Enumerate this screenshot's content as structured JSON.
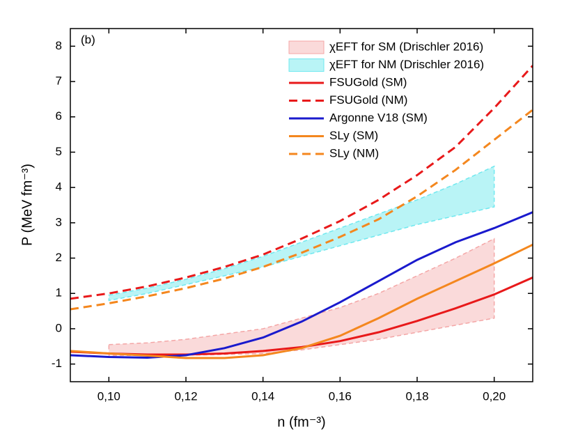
{
  "chart_data": {
    "type": "line",
    "annotation": "(b)",
    "xlabel": "n (fm⁻³)",
    "ylabel": "P (MeV fm⁻³)",
    "xlim": [
      0.09,
      0.21
    ],
    "ylim": [
      -1.5,
      8.5
    ],
    "xticks": [
      {
        "value": 0.1,
        "label": "0,10"
      },
      {
        "value": 0.12,
        "label": "0,12"
      },
      {
        "value": 0.14,
        "label": "0,14"
      },
      {
        "value": 0.16,
        "label": "0,16"
      },
      {
        "value": 0.18,
        "label": "0,18"
      },
      {
        "value": 0.2,
        "label": "0,20"
      }
    ],
    "yticks": [
      -1,
      0,
      1,
      2,
      3,
      4,
      5,
      6,
      7,
      8
    ],
    "legend": "upper right",
    "series": [
      {
        "name": "χEFT for SM (Drischler 2016)",
        "kind": "band",
        "color": "#f4a6a6",
        "fill": "#fadada",
        "x": [
          0.1,
          0.11,
          0.12,
          0.13,
          0.14,
          0.15,
          0.16,
          0.17,
          0.18,
          0.19,
          0.2
        ],
        "low": [
          -0.75,
          -0.76,
          -0.75,
          -0.73,
          -0.7,
          -0.6,
          -0.45,
          -0.3,
          -0.1,
          0.1,
          0.3
        ],
        "high": [
          -0.45,
          -0.4,
          -0.3,
          -0.15,
          0.0,
          0.3,
          0.6,
          1.0,
          1.5,
          2.0,
          2.55
        ]
      },
      {
        "name": "χEFT for NM (Drischler 2016)",
        "kind": "band",
        "color": "#6fe8ef",
        "fill": "#b9f4f6",
        "x": [
          0.1,
          0.11,
          0.12,
          0.13,
          0.14,
          0.15,
          0.16,
          0.17,
          0.18,
          0.19,
          0.2
        ],
        "low": [
          0.8,
          1.0,
          1.25,
          1.5,
          1.75,
          2.05,
          2.35,
          2.65,
          2.95,
          3.2,
          3.45
        ],
        "high": [
          0.95,
          1.15,
          1.4,
          1.7,
          2.05,
          2.45,
          2.85,
          3.25,
          3.65,
          4.1,
          4.6
        ]
      },
      {
        "name": "FSUGold (SM)",
        "kind": "line",
        "dashed": false,
        "color": "#e8191a",
        "x": [
          0.09,
          0.1,
          0.11,
          0.12,
          0.13,
          0.14,
          0.15,
          0.16,
          0.17,
          0.18,
          0.19,
          0.2,
          0.21
        ],
        "values": [
          -0.65,
          -0.7,
          -0.73,
          -0.73,
          -0.7,
          -0.63,
          -0.52,
          -0.35,
          -0.1,
          0.22,
          0.58,
          0.97,
          1.45
        ]
      },
      {
        "name": "FSUGold (NM)",
        "kind": "line",
        "dashed": true,
        "color": "#e8191a",
        "x": [
          0.09,
          0.1,
          0.11,
          0.12,
          0.13,
          0.14,
          0.15,
          0.16,
          0.17,
          0.18,
          0.19,
          0.2,
          0.21
        ],
        "values": [
          0.85,
          1.0,
          1.2,
          1.45,
          1.75,
          2.1,
          2.55,
          3.05,
          3.65,
          4.35,
          5.15,
          6.25,
          7.45
        ]
      },
      {
        "name": "Argonne V18 (SM)",
        "kind": "line",
        "dashed": false,
        "color": "#1a1acd",
        "x": [
          0.09,
          0.1,
          0.11,
          0.12,
          0.13,
          0.14,
          0.15,
          0.16,
          0.17,
          0.18,
          0.19,
          0.2,
          0.21
        ],
        "values": [
          -0.75,
          -0.8,
          -0.82,
          -0.75,
          -0.55,
          -0.25,
          0.2,
          0.75,
          1.35,
          1.95,
          2.45,
          2.85,
          3.3
        ]
      },
      {
        "name": "SLy (SM)",
        "kind": "line",
        "dashed": false,
        "color": "#f4871e",
        "x": [
          0.09,
          0.1,
          0.11,
          0.12,
          0.13,
          0.14,
          0.15,
          0.16,
          0.17,
          0.18,
          0.19,
          0.2,
          0.21
        ],
        "values": [
          -0.63,
          -0.7,
          -0.76,
          -0.83,
          -0.83,
          -0.75,
          -0.55,
          -0.2,
          0.3,
          0.85,
          1.35,
          1.85,
          2.38
        ]
      },
      {
        "name": "SLy (NM)",
        "kind": "line",
        "dashed": true,
        "color": "#f4871e",
        "x": [
          0.09,
          0.1,
          0.11,
          0.12,
          0.13,
          0.14,
          0.15,
          0.16,
          0.17,
          0.18,
          0.19,
          0.2,
          0.21
        ],
        "values": [
          0.55,
          0.72,
          0.92,
          1.15,
          1.42,
          1.75,
          2.15,
          2.6,
          3.1,
          3.75,
          4.5,
          5.35,
          6.2
        ]
      }
    ]
  }
}
